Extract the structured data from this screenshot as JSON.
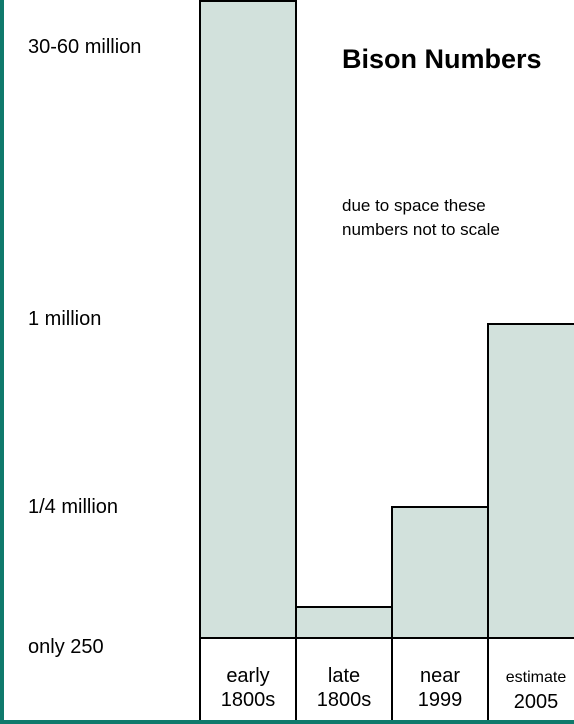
{
  "chart_data": {
    "type": "bar",
    "title": "Bison Numbers",
    "annotation": "due to space these numbers not to scale",
    "y_tick_labels": [
      "30-60 million",
      "1 million",
      "1/4 million",
      "only 250"
    ],
    "categories": [
      {
        "line1": "early",
        "line2": "1800s"
      },
      {
        "line1": "late",
        "line2": "1800s"
      },
      {
        "line1": "near",
        "line2": "1999"
      },
      {
        "line1": "estimate",
        "line2": "2005"
      }
    ],
    "values": [
      "30-60 million",
      "only 250",
      "1/4 million",
      "1 million"
    ],
    "y_scale": "not to scale (ordinal levels)",
    "bar_level": [
      4,
      1,
      2,
      3
    ],
    "colors": {
      "bar_fill": "#d2e1dc",
      "frame": "#0f7a6c",
      "outline": "#000000"
    }
  }
}
